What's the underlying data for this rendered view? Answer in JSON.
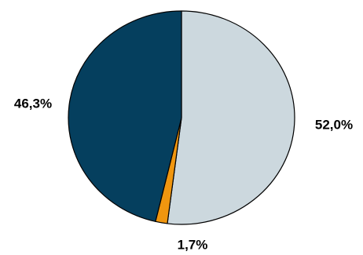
{
  "chart_data": {
    "type": "pie",
    "title": "",
    "categories": [
      "",
      "",
      ""
    ],
    "values": [
      52.0,
      1.7,
      46.3
    ],
    "labels": [
      "52,0%",
      "1,7%",
      "46,3%"
    ],
    "colors": [
      "#ccd8de",
      "#f0960f",
      "#053f5e"
    ],
    "start_angle_deg": 0,
    "direction": "clockwise",
    "legend": "none"
  }
}
